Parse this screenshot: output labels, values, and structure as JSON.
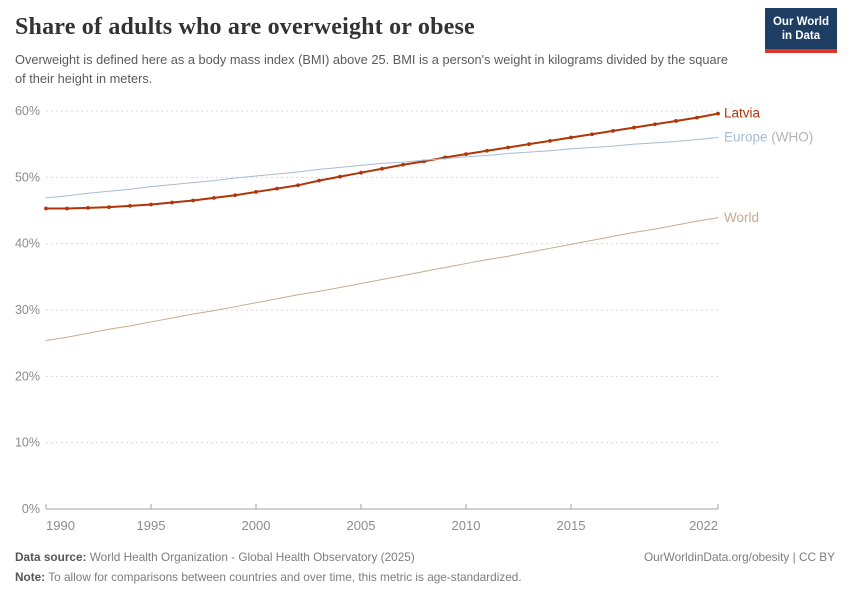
{
  "header": {
    "title": "Share of adults who are overweight or obese",
    "subtitle": "Overweight is defined here as a body mass index (BMI) above 25. BMI is a person's weight in kilograms divided by the square of their height in meters.",
    "logo_line1": "Our World",
    "logo_line2": "in Data"
  },
  "chart_data": {
    "type": "line",
    "x": [
      1990,
      1991,
      1992,
      1993,
      1994,
      1995,
      1996,
      1997,
      1998,
      1999,
      2000,
      2001,
      2002,
      2003,
      2004,
      2005,
      2006,
      2007,
      2008,
      2009,
      2010,
      2011,
      2012,
      2013,
      2014,
      2015,
      2016,
      2017,
      2018,
      2019,
      2020,
      2021,
      2022
    ],
    "series": [
      {
        "name": "Latvia",
        "label_main": "Latvia",
        "label_suffix": "",
        "color": "#b13507",
        "suffix_color": "#b13507",
        "line_width": 2,
        "markers": true,
        "values": [
          45.3,
          45.3,
          45.4,
          45.5,
          45.7,
          45.9,
          46.2,
          46.5,
          46.9,
          47.3,
          47.8,
          48.3,
          48.8,
          49.5,
          50.1,
          50.7,
          51.3,
          51.9,
          52.4,
          53.0,
          53.5,
          54.0,
          54.5,
          55.0,
          55.5,
          56.0,
          56.5,
          57.0,
          57.5,
          58.0,
          58.5,
          59.0,
          59.6
        ]
      },
      {
        "name": "Europe (WHO)",
        "label_main": "Europe",
        "label_suffix": " (WHO)",
        "color": "#a7bbd5",
        "suffix_color": "#b3b3b3",
        "line_width": 1,
        "markers": false,
        "values": [
          46.9,
          47.2,
          47.6,
          47.9,
          48.2,
          48.6,
          48.9,
          49.2,
          49.5,
          49.9,
          50.2,
          50.5,
          50.8,
          51.2,
          51.5,
          51.8,
          52.1,
          52.3,
          52.6,
          52.8,
          53.1,
          53.3,
          53.6,
          53.8,
          54.0,
          54.3,
          54.5,
          54.7,
          55.0,
          55.2,
          55.4,
          55.7,
          56.0
        ]
      },
      {
        "name": "World",
        "label_main": "World",
        "label_suffix": "",
        "color": "#c8ab8c",
        "suffix_color": "#c8ab8c",
        "line_width": 1,
        "markers": false,
        "values": [
          25.4,
          25.9,
          26.5,
          27.1,
          27.6,
          28.2,
          28.8,
          29.4,
          29.9,
          30.5,
          31.1,
          31.7,
          32.3,
          32.8,
          33.4,
          34.0,
          34.6,
          35.2,
          35.8,
          36.4,
          37.0,
          37.6,
          38.1,
          38.7,
          39.3,
          39.9,
          40.5,
          41.1,
          41.7,
          42.2,
          42.8,
          43.4,
          43.9
        ]
      }
    ],
    "title": "Share of adults who are overweight or obese",
    "xlabel": "",
    "ylabel": "",
    "xlim": [
      1990,
      2022
    ],
    "ylim": [
      0,
      60
    ],
    "yticks": [
      0,
      10,
      20,
      30,
      40,
      50,
      60
    ],
    "ytick_suffix": "%",
    "xticks": [
      1990,
      1995,
      2000,
      2005,
      2010,
      2015,
      2022
    ],
    "grid": "dashed horizontal",
    "legend_position": "right-of-line-ends"
  },
  "style": {
    "grid_color": "#dadada",
    "axis_color": "#a3a3a3",
    "tick_label_color": "#8c8c8c"
  },
  "footer": {
    "source_label": "Data source:",
    "source_text": " World Health Organization - Global Health Observatory (2025)",
    "right_text": "OurWorldinData.org/obesity | CC BY",
    "note_label": "Note:",
    "note_text": " To allow for comparisons between countries and over time, this metric is age-standardized."
  }
}
